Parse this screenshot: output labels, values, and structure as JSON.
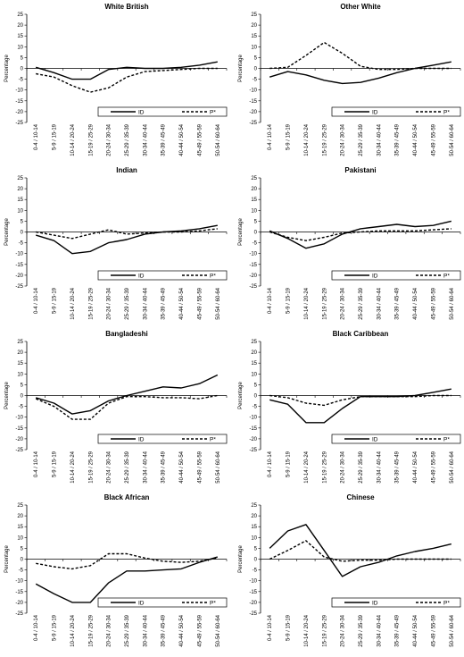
{
  "figure": {
    "colors": {
      "axis": "#000000",
      "id_line": "#000000",
      "p_line": "#000000"
    }
  },
  "chart_data": [
    {
      "type": "line",
      "title": "White British",
      "ylabel": "Percentage",
      "ylim": [
        -25,
        25
      ],
      "yticks": [
        25,
        20,
        15,
        10,
        5,
        0,
        -5,
        -10,
        -15,
        -20,
        -25
      ],
      "categories": [
        "0-4 / 10-14",
        "5-9 / 15-19",
        "10-14 / 20-24",
        "15-19 / 25-29",
        "20-24 / 30-34",
        "25-29 / 35-39",
        "30-34 / 40-44",
        "35-39 / 45-49",
        "40-44 / 50-54",
        "45-49 / 55-59",
        "50-54 / 60-64"
      ],
      "series": [
        {
          "name": "ID",
          "style": "solid",
          "values": [
            0.5,
            -2,
            -5,
            -5,
            -0.5,
            0.5,
            0,
            0,
            0.5,
            1.5,
            3
          ]
        },
        {
          "name": "P*",
          "style": "dashed",
          "values": [
            -2.5,
            -4,
            -8,
            -11,
            -9,
            -4,
            -1.5,
            -1,
            -0.5,
            0,
            0
          ]
        }
      ],
      "legend": "bottom"
    },
    {
      "type": "line",
      "title": "Other White",
      "ylabel": "Percentage",
      "ylim": [
        -25,
        25
      ],
      "yticks": [
        25,
        20,
        15,
        10,
        5,
        0,
        -5,
        -10,
        -15,
        -20,
        -25
      ],
      "categories": [
        "0-4 / 10-14",
        "5-9 / 15-19",
        "10-14 / 20-24",
        "15-19 / 25-29",
        "20-24 / 30-34",
        "25-29 / 35-39",
        "30-34 / 40-44",
        "35-39 / 45-49",
        "40-44 / 50-54",
        "45-49 / 55-59",
        "50-54 / 60-64"
      ],
      "series": [
        {
          "name": "ID",
          "style": "solid",
          "values": [
            -4,
            -1.5,
            -3,
            -5.5,
            -7,
            -6.5,
            -4.5,
            -2,
            0,
            1.5,
            3
          ]
        },
        {
          "name": "P*",
          "style": "dashed",
          "values": [
            0,
            0.5,
            6,
            12,
            7,
            1,
            -0.5,
            -0.5,
            0,
            0,
            0
          ]
        }
      ],
      "legend": "bottom"
    },
    {
      "type": "line",
      "title": "Indian",
      "ylabel": "Percentage",
      "ylim": [
        -25,
        25
      ],
      "yticks": [
        25,
        20,
        15,
        10,
        5,
        0,
        -5,
        -10,
        -15,
        -20,
        -25
      ],
      "categories": [
        "0-4 / 10-14",
        "5-9 / 15-19",
        "10-14 / 20-24",
        "15-19 / 25-29",
        "20-24 / 30-34",
        "25-29 / 35-39",
        "30-34 / 40-44",
        "35-39 / 45-49",
        "40-44 / 50-54",
        "45-49 / 55-59",
        "50-54 / 60-64"
      ],
      "series": [
        {
          "name": "ID",
          "style": "solid",
          "values": [
            -1.5,
            -4,
            -10,
            -9,
            -5,
            -3.5,
            -1,
            0,
            0.5,
            1.5,
            3
          ]
        },
        {
          "name": "P*",
          "style": "dashed",
          "values": [
            0,
            -1.5,
            -3,
            -1,
            1,
            -1,
            -0.5,
            0,
            0,
            0.5,
            1.5
          ]
        }
      ],
      "legend": "bottom"
    },
    {
      "type": "line",
      "title": "Pakistani",
      "ylabel": "Percentage",
      "ylim": [
        -25,
        25
      ],
      "yticks": [
        25,
        20,
        15,
        10,
        5,
        0,
        -5,
        -10,
        -15,
        -20,
        -25
      ],
      "categories": [
        "0-4 / 10-14",
        "5-9 / 15-19",
        "10-14 / 20-24",
        "15-19 / 25-29",
        "20-24 / 30-34",
        "25-29 / 35-39",
        "30-34 / 40-44",
        "35-39 / 45-49",
        "40-44 / 50-54",
        "45-49 / 55-59",
        "50-54 / 60-64"
      ],
      "series": [
        {
          "name": "ID",
          "style": "solid",
          "values": [
            0.5,
            -3,
            -7.5,
            -5.5,
            -1,
            1.5,
            2.5,
            3.5,
            2.5,
            3,
            5
          ]
        },
        {
          "name": "P*",
          "style": "dashed",
          "values": [
            0,
            -2.5,
            -4,
            -2.5,
            -0.5,
            0,
            0.5,
            0.5,
            0.5,
            1,
            1.5
          ]
        }
      ],
      "legend": "bottom"
    },
    {
      "type": "line",
      "title": "Bangladeshi",
      "ylabel": "Percentage",
      "ylim": [
        -25,
        25
      ],
      "yticks": [
        25,
        20,
        15,
        10,
        5,
        0,
        -5,
        -10,
        -15,
        -20,
        -25
      ],
      "categories": [
        "0-4 / 10-14",
        "5-9 / 15-19",
        "10-14 / 20-24",
        "15-19 / 25-29",
        "20-24 / 30-34",
        "25-29 / 35-39",
        "30-34 / 40-44",
        "35-39 / 45-49",
        "40-44 / 50-54",
        "45-49 / 55-59",
        "50-54 / 60-64"
      ],
      "series": [
        {
          "name": "ID",
          "style": "solid",
          "values": [
            -1,
            -3.5,
            -8.5,
            -7,
            -2.5,
            0,
            2,
            4,
            3.5,
            5.5,
            9.5
          ]
        },
        {
          "name": "P*",
          "style": "dashed",
          "values": [
            -1.5,
            -5,
            -11,
            -11,
            -3.5,
            -0.5,
            -0.5,
            -1,
            -1,
            -1.5,
            0
          ]
        }
      ],
      "legend": "bottom"
    },
    {
      "type": "line",
      "title": "Black Caribbean",
      "ylabel": "Percentage",
      "ylim": [
        -25,
        25
      ],
      "yticks": [
        25,
        20,
        15,
        10,
        5,
        0,
        -5,
        -10,
        -15,
        -20,
        -25
      ],
      "categories": [
        "0-4 / 10-14",
        "5-9 / 15-19",
        "10-14 / 20-24",
        "15-19 / 25-29",
        "20-24 / 30-34",
        "25-29 / 35-39",
        "30-34 / 40-44",
        "35-39 / 45-49",
        "40-44 / 50-54",
        "45-49 / 55-59",
        "50-54 / 60-64"
      ],
      "series": [
        {
          "name": "ID",
          "style": "solid",
          "values": [
            -2,
            -4,
            -12.5,
            -12.5,
            -6,
            -0.5,
            -0.5,
            -0.5,
            0,
            1.5,
            3
          ]
        },
        {
          "name": "P*",
          "style": "dashed",
          "values": [
            0,
            -1,
            -3.5,
            -4.5,
            -2,
            -0.5,
            -0.5,
            -0.5,
            -0.5,
            0,
            0
          ]
        }
      ],
      "legend": "bottom"
    },
    {
      "type": "line",
      "title": "Black African",
      "ylabel": "Percentage",
      "ylim": [
        -25,
        25
      ],
      "yticks": [
        25,
        20,
        15,
        10,
        5,
        0,
        -5,
        -10,
        -15,
        -20,
        -25
      ],
      "categories": [
        "0-4 / 10-14",
        "5-9 / 15-19",
        "10-14 / 20-24",
        "15-19 / 25-29",
        "20-24 / 30-34",
        "25-29 / 35-39",
        "30-34 / 40-44",
        "35-39 / 45-49",
        "40-44 / 50-54",
        "45-49 / 55-59",
        "50-54 / 60-64"
      ],
      "series": [
        {
          "name": "ID",
          "style": "solid",
          "values": [
            -11.5,
            -16,
            -20,
            -20,
            -11,
            -5.5,
            -5.5,
            -5,
            -4.5,
            -1.5,
            1
          ]
        },
        {
          "name": "P*",
          "style": "dashed",
          "values": [
            -2,
            -3.5,
            -4.5,
            -3,
            2.5,
            2.5,
            0.5,
            -1,
            -1.5,
            -1,
            0.5
          ]
        }
      ],
      "legend": "bottom"
    },
    {
      "type": "line",
      "title": "Chinese",
      "ylabel": "Percentage",
      "ylim": [
        -25,
        25
      ],
      "yticks": [
        25,
        20,
        15,
        10,
        5,
        0,
        -5,
        -10,
        -15,
        -20,
        -25
      ],
      "categories": [
        "0-4 / 10-14",
        "5-9 / 15-19",
        "10-14 / 20-24",
        "15-19 / 25-29",
        "20-24 / 30-34",
        "25-29 / 35-39",
        "30-34 / 40-44",
        "35-39 / 45-49",
        "40-44 / 50-54",
        "45-49 / 55-59",
        "50-54 / 60-64"
      ],
      "series": [
        {
          "name": "ID",
          "style": "solid",
          "values": [
            5,
            13,
            16,
            4,
            -8,
            -3.5,
            -1.5,
            1.5,
            3.5,
            5,
            7
          ]
        },
        {
          "name": "P*",
          "style": "dashed",
          "values": [
            0,
            4,
            8.5,
            1,
            -1,
            -0.5,
            -0.5,
            0,
            0,
            0,
            0
          ]
        }
      ],
      "legend": "bottom"
    }
  ]
}
